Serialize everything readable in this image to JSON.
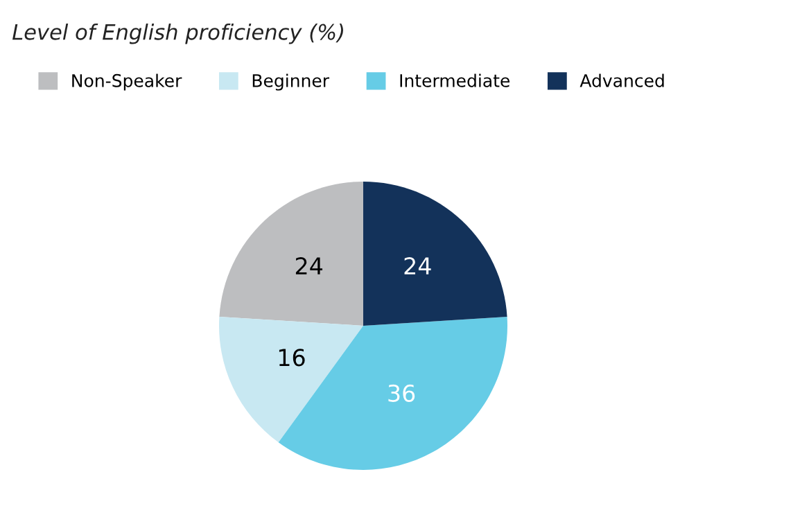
{
  "chart_data": {
    "type": "pie",
    "title": "Level of English proficiency (%)",
    "categories": [
      "Non-Speaker",
      "Beginner",
      "Intermediate",
      "Advanced"
    ],
    "values": [
      24,
      16,
      36,
      24
    ],
    "colors": [
      "#bdbec0",
      "#c8e8f2",
      "#66cce6",
      "#13325a"
    ],
    "data_labels": true,
    "legend": "top left"
  }
}
